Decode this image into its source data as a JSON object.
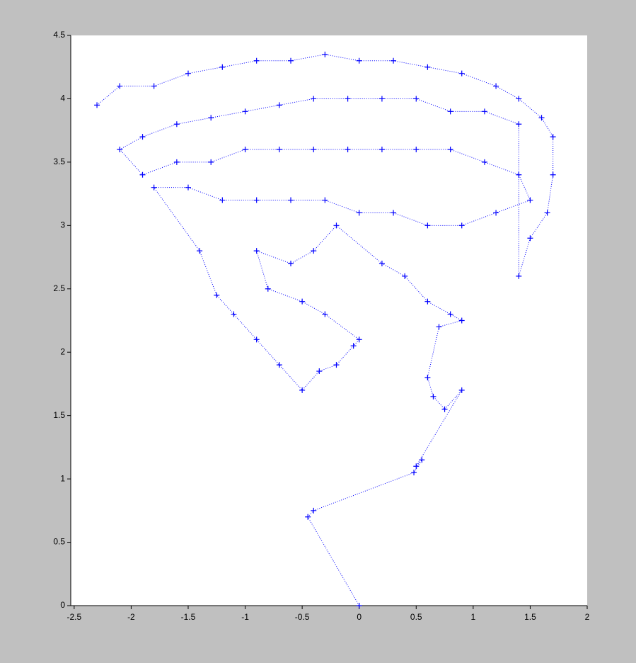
{
  "chart_data": {
    "type": "scatter",
    "color": "#0000ff",
    "marker": "+",
    "line_style": "dotted",
    "xlim": [
      -2.53,
      2
    ],
    "ylim": [
      0,
      4.5
    ],
    "xticks": [
      -2.5,
      -2,
      -1.5,
      -1,
      -0.5,
      0,
      0.5,
      1,
      1.5,
      2
    ],
    "yticks": [
      0,
      0.5,
      1,
      1.5,
      2,
      2.5,
      3,
      3.5,
      4,
      4.5
    ],
    "x": [
      -2.3,
      -2.1,
      -1.8,
      -1.5,
      -1.2,
      -0.9,
      -0.6,
      -0.3,
      0,
      0.3,
      0.6,
      0.9,
      1.2,
      1.4,
      1.6,
      1.7,
      1.7,
      1.65,
      1.5,
      1.4,
      1.4,
      1.1,
      0.8,
      0.5,
      0.2,
      -0.1,
      -0.4,
      -0.7,
      -1.0,
      -1.3,
      -1.6,
      -1.9,
      -2.1,
      -1.9,
      -1.6,
      -1.3,
      -1.0,
      -0.7,
      -0.4,
      -0.1,
      0.2,
      0.5,
      0.8,
      1.1,
      1.4,
      1.5,
      1.2,
      0.9,
      0.6,
      0.3,
      0,
      -0.3,
      -0.6,
      -0.9,
      -1.2,
      -1.5,
      -1.8,
      -1.4,
      -1.25,
      -1.1,
      -0.9,
      -0.7,
      -0.5,
      -0.35,
      -0.2,
      -0.05,
      0,
      -0.3,
      -0.5,
      -0.8,
      -0.9,
      -0.6,
      -0.4,
      -0.2,
      0.2,
      0.4,
      0.6,
      0.8,
      0.9,
      0.7,
      0.6,
      0.65,
      0.75,
      0.9,
      0.5,
      0.55,
      0.48,
      -0.4,
      -0.45,
      0
    ],
    "values": [
      3.95,
      4.1,
      4.1,
      4.2,
      4.25,
      4.3,
      4.3,
      4.35,
      4.3,
      4.3,
      4.25,
      4.2,
      4.1,
      4.0,
      3.85,
      3.7,
      3.4,
      3.1,
      2.9,
      2.6,
      3.8,
      3.9,
      3.9,
      4.0,
      4.0,
      4.0,
      4.0,
      3.95,
      3.9,
      3.85,
      3.8,
      3.7,
      3.6,
      3.4,
      3.5,
      3.5,
      3.6,
      3.6,
      3.6,
      3.6,
      3.6,
      3.6,
      3.6,
      3.5,
      3.4,
      3.2,
      3.1,
      3.0,
      3.0,
      3.1,
      3.1,
      3.2,
      3.2,
      3.2,
      3.2,
      3.3,
      3.3,
      2.8,
      2.45,
      2.3,
      2.1,
      1.9,
      1.7,
      1.85,
      1.9,
      2.05,
      2.1,
      2.3,
      2.4,
      2.5,
      2.8,
      2.7,
      2.8,
      3.0,
      2.7,
      2.6,
      2.4,
      2.3,
      2.25,
      2.2,
      1.8,
      1.65,
      1.55,
      1.7,
      1.1,
      1.15,
      1.05,
      0.75,
      0.7,
      0
    ]
  }
}
